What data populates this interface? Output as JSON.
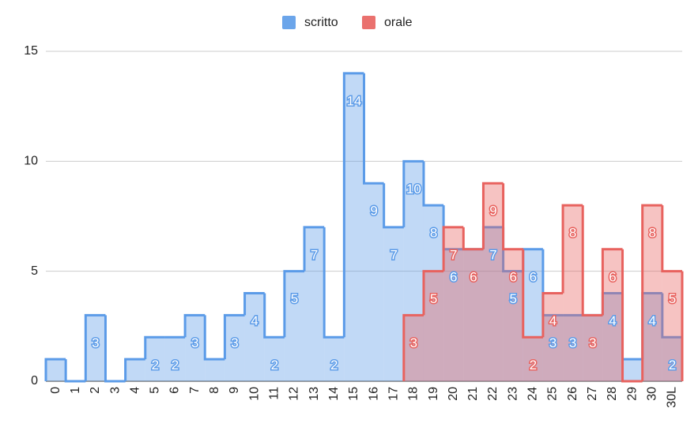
{
  "chart_data": {
    "type": "steppedArea",
    "categories": [
      "0",
      "1",
      "2",
      "3",
      "4",
      "5",
      "6",
      "7",
      "8",
      "9",
      "10",
      "11",
      "12",
      "13",
      "14",
      "15",
      "16",
      "17",
      "18",
      "19",
      "20",
      "21",
      "22",
      "23",
      "24",
      "25",
      "26",
      "27",
      "28",
      "29",
      "30",
      "30L"
    ],
    "series": [
      {
        "name": "scritto",
        "color": "#5b9be8",
        "values": [
          1,
          0,
          3,
          0,
          1,
          2,
          2,
          3,
          1,
          3,
          4,
          2,
          5,
          7,
          2,
          14,
          9,
          7,
          10,
          8,
          6,
          6,
          7,
          5,
          6,
          3,
          3,
          3,
          4,
          1,
          4,
          2
        ],
        "value_labels": [
          null,
          null,
          "3",
          null,
          null,
          "2",
          "2",
          "3",
          null,
          "3",
          "4",
          "2",
          "5",
          "7",
          "2",
          "14",
          "9",
          "7",
          "10",
          "8",
          "6",
          null,
          "7",
          "5",
          "6",
          "3",
          "3",
          null,
          "4",
          null,
          "4",
          "2"
        ]
      },
      {
        "name": "orale",
        "color": "#e8625e",
        "values": [
          null,
          null,
          null,
          null,
          null,
          null,
          null,
          null,
          null,
          null,
          null,
          null,
          null,
          null,
          null,
          null,
          null,
          null,
          3,
          5,
          7,
          6,
          9,
          6,
          2,
          4,
          8,
          3,
          6,
          0,
          8,
          5
        ],
        "value_labels": [
          null,
          null,
          null,
          null,
          null,
          null,
          null,
          null,
          null,
          null,
          null,
          null,
          null,
          null,
          null,
          null,
          null,
          null,
          "3",
          "5",
          "7",
          "6",
          "9",
          "6",
          "2",
          "4",
          "8",
          "3",
          "6",
          null,
          "8",
          "5"
        ]
      }
    ],
    "ylim": [
      0,
      15
    ],
    "yticks": [
      0,
      5,
      10,
      15
    ],
    "grid": true,
    "legend": "top"
  }
}
